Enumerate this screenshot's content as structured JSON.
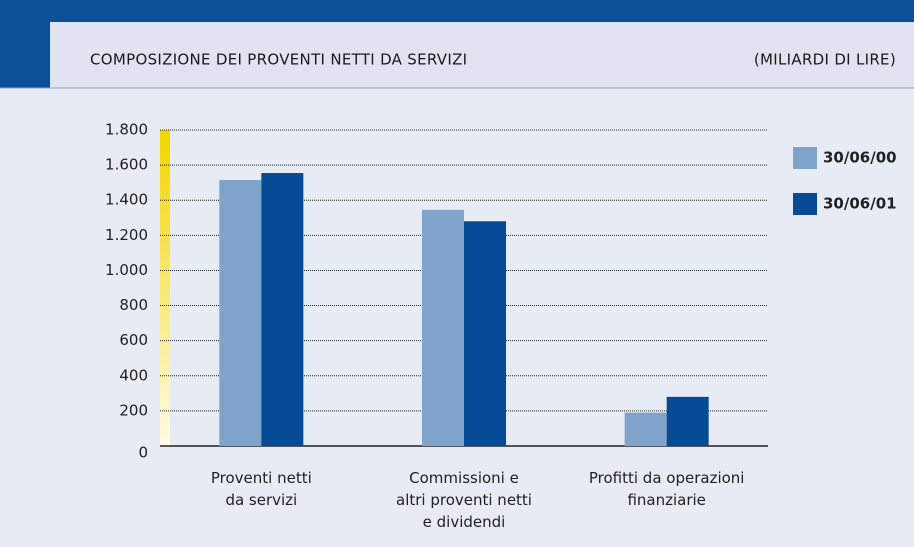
{
  "chart_data": {
    "type": "bar",
    "title": "COMPOSIZIONE DEI PROVENTI NETTI DA SERVIZI",
    "unit_label": "(MILIARDI DI LIRE)",
    "categories": [
      "Proventi netti\nda servizi",
      "Commissioni e\naltri proventi netti\ne dividendi",
      "Profitti da operazioni\nfinanziarie"
    ],
    "series": [
      {
        "name": "30/06/00",
        "color": "#7fa3cb",
        "values": [
          1515,
          1345,
          190
        ]
      },
      {
        "name": "30/06/01",
        "color": "#054b95",
        "values": [
          1555,
          1280,
          280
        ]
      }
    ],
    "ylim": [
      0,
      1800
    ],
    "yticks": [
      0,
      200,
      400,
      600,
      800,
      {
        "value": 1000,
        "label": "1.000"
      },
      {
        "value": 1200,
        "label": "1.200"
      },
      {
        "value": 1400,
        "label": "1.400"
      },
      {
        "value": 1600,
        "label": "1.600"
      },
      {
        "value": 1800,
        "label": "1.800"
      }
    ],
    "grid": true,
    "legend": "right"
  }
}
